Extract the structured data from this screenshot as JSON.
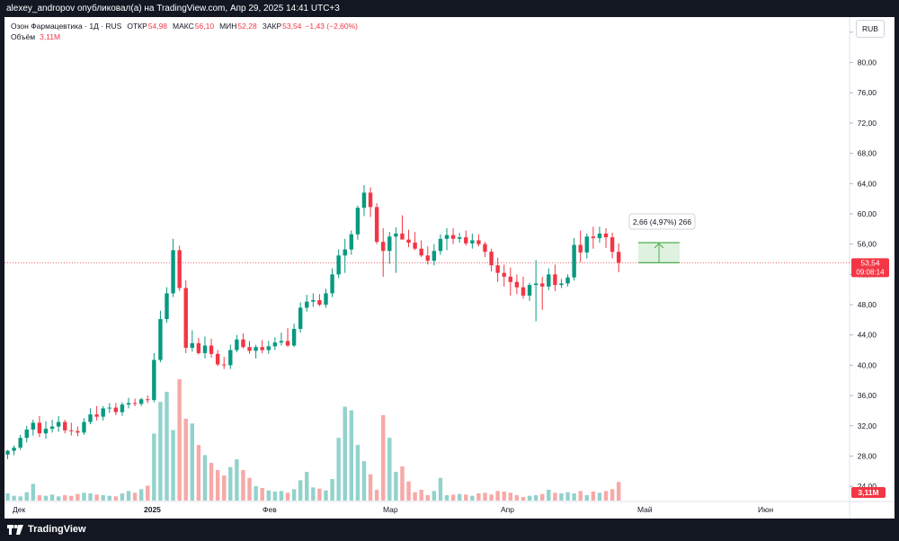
{
  "header": {
    "publish_text": "alexey_andropov опубликовал(а) на TradingView.com, Апр 29, 2025 14:41 UTC+3"
  },
  "legend": {
    "symbol": "Озон Фармацевтика · 1Д · RUS",
    "open_label": "ОТКР",
    "open_value": "54,98",
    "high_label": "МАКС",
    "high_value": "56,10",
    "low_label": "МИН",
    "low_value": "52,28",
    "close_label": "ЗАКР",
    "close_value": "53,54",
    "change": "−1,43 (−2,60%)",
    "volume_label": "Объём",
    "volume_value": "3,11M"
  },
  "currency_button": "RUB",
  "footer": {
    "logo_text": "TradingView"
  },
  "colors": {
    "up": "#089981",
    "down": "#f23645",
    "up_volume": "#92d2cc",
    "down_volume": "#f7a9a7",
    "measure": "#4caf50"
  },
  "chart_data": {
    "type": "candlestick",
    "ylim": [
      22,
      86
    ],
    "y_ticks": [
      "24,00",
      "28,00",
      "32,00",
      "36,00",
      "40,00",
      "44,00",
      "48,00",
      "52,00",
      "56,00",
      "60,00",
      "64,00",
      "68,00",
      "72,00",
      "76,00",
      "80,00",
      "84,00"
    ],
    "x_ticks": [
      "Дек",
      "2025",
      "Фев",
      "Мар",
      "Апр",
      "Май",
      "Июн"
    ],
    "last_price_label": "53,54",
    "countdown_label": "09:08:14",
    "volume_label": "3,11M",
    "measure_label": "2,66 (4,97%) 266",
    "measure_range": [
      53.54,
      56.2
    ],
    "series": {
      "open": [
        28.2,
        28.7,
        29.1,
        30.4,
        31.5,
        32.4,
        31.0,
        31.6,
        31.9,
        32.5,
        31.4,
        31.3,
        31.1,
        32.5,
        33.5,
        33.2,
        34.3,
        34.4,
        33.8,
        34.8,
        35.0,
        34.9,
        35.5,
        35.4,
        40.7,
        46.1,
        49.5,
        55.2,
        50.2,
        42.3,
        42.9,
        41.6,
        42.6,
        41.5,
        40.1,
        40.0,
        42.0,
        43.4,
        42.4,
        41.9,
        42.4,
        42.0,
        42.5,
        43.0,
        43.2,
        42.6,
        44.8,
        47.6,
        48.4,
        48.6,
        48.0,
        49.5,
        52.0,
        54.5,
        55.3,
        57.3,
        60.8,
        62.8,
        60.9,
        56.3,
        55.1,
        57.0,
        57.4,
        56.6,
        56.2,
        55.4,
        54.5,
        53.8,
        55.1,
        56.7,
        57.2,
        56.7,
        56.9,
        56.1,
        56.5,
        56.0,
        55.0,
        53.2,
        52.2,
        51.7,
        51.0,
        50.3,
        49.2,
        50.6,
        50.8,
        50.4,
        52.0,
        50.6,
        50.8,
        51.6,
        55.9,
        54.9,
        57.0,
        56.8,
        57.4,
        56.9,
        54.98
      ],
      "high": [
        28.8,
        29.4,
        30.8,
        32.0,
        32.8,
        33.3,
        32.6,
        32.8,
        33.3,
        32.8,
        32.4,
        31.9,
        33.0,
        34.3,
        34.6,
        34.6,
        35.0,
        35.0,
        35.1,
        35.7,
        35.6,
        35.7,
        36.0,
        41.6,
        47.2,
        50.3,
        56.7,
        55.8,
        51.2,
        44.6,
        43.6,
        43.8,
        43.5,
        42.0,
        41.1,
        42.7,
        44.0,
        44.2,
        43.2,
        42.7,
        43.3,
        43.2,
        43.7,
        44.3,
        44.9,
        45.5,
        48.3,
        49.3,
        49.5,
        49.4,
        50.1,
        52.8,
        55.3,
        56.7,
        57.8,
        61.1,
        63.8,
        63.5,
        61.4,
        58.1,
        57.6,
        58.2,
        59.8,
        57.9,
        57.6,
        56.5,
        55.7,
        56.0,
        57.3,
        58.1,
        58.1,
        57.5,
        57.8,
        57.4,
        57.3,
        56.3,
        55.4,
        54.2,
        53.3,
        52.9,
        52.0,
        51.7,
        50.9,
        53.9,
        51.7,
        52.8,
        53.3,
        51.4,
        52.0,
        56.8,
        57.8,
        57.4,
        58.3,
        58.3,
        58.1,
        57.5,
        56.1
      ],
      "low": [
        27.6,
        28.1,
        28.8,
        29.8,
        30.7,
        30.5,
        30.3,
        31.1,
        31.2,
        31.0,
        30.7,
        30.6,
        30.8,
        32.2,
        32.7,
        32.7,
        33.7,
        33.4,
        33.3,
        34.3,
        34.6,
        34.6,
        35.0,
        35.1,
        40.4,
        45.6,
        49.0,
        49.8,
        41.6,
        41.8,
        41.4,
        40.9,
        41.0,
        39.9,
        39.5,
        39.5,
        41.7,
        42.2,
        41.5,
        40.9,
        41.6,
        41.5,
        42.0,
        42.6,
        42.4,
        42.4,
        44.3,
        47.1,
        47.7,
        47.8,
        47.6,
        49.0,
        51.5,
        52.2,
        54.6,
        56.6,
        59.7,
        59.6,
        56.0,
        51.7,
        53.4,
        52.2,
        57.0,
        55.6,
        55.2,
        54.3,
        53.3,
        53.2,
        54.6,
        55.2,
        56.0,
        56.2,
        55.8,
        55.4,
        55.7,
        54.3,
        52.4,
        51.0,
        50.4,
        49.2,
        49.4,
        48.8,
        48.5,
        45.8,
        47.3,
        49.9,
        49.8,
        50.2,
        50.4,
        51.2,
        53.6,
        54.1,
        55.4,
        56.2,
        55.5,
        54.1,
        52.28
      ],
      "close": [
        28.7,
        29.1,
        30.4,
        31.5,
        32.4,
        31.0,
        31.6,
        31.9,
        32.5,
        31.4,
        31.3,
        31.1,
        32.5,
        33.5,
        33.2,
        34.3,
        34.4,
        33.8,
        34.8,
        35.0,
        34.9,
        35.5,
        35.4,
        40.7,
        46.1,
        49.5,
        55.2,
        50.2,
        42.3,
        42.9,
        41.6,
        42.6,
        41.5,
        40.1,
        40.0,
        42.0,
        43.4,
        42.4,
        41.9,
        42.4,
        42.0,
        42.5,
        43.0,
        43.2,
        42.6,
        44.8,
        47.6,
        48.4,
        48.6,
        48.0,
        49.5,
        52.0,
        54.5,
        55.3,
        57.3,
        60.8,
        62.8,
        60.9,
        56.3,
        55.1,
        57.0,
        57.4,
        56.6,
        56.2,
        55.4,
        54.5,
        53.8,
        55.1,
        56.7,
        57.2,
        56.7,
        56.9,
        56.1,
        56.5,
        56.0,
        55.0,
        53.2,
        52.2,
        51.7,
        51.0,
        50.3,
        49.2,
        50.6,
        50.8,
        50.4,
        52.0,
        50.6,
        50.8,
        51.6,
        55.9,
        54.9,
        57.0,
        56.8,
        57.4,
        56.9,
        54.98,
        53.54
      ],
      "volume": [
        1.2,
        0.8,
        0.7,
        1.4,
        2.8,
        0.9,
        0.8,
        1.0,
        0.7,
        0.9,
        0.8,
        1.1,
        1.3,
        1.2,
        1.0,
        0.9,
        0.8,
        0.7,
        1.2,
        1.6,
        1.3,
        1.9,
        2.5,
        11.2,
        16.5,
        18.2,
        11.8,
        20.3,
        13.7,
        12.9,
        9.3,
        7.6,
        6.3,
        5.1,
        4.2,
        5.6,
        6.9,
        5.1,
        3.8,
        2.4,
        2.1,
        1.7,
        1.5,
        1.6,
        1.3,
        1.9,
        3.4,
        4.8,
        2.2,
        2.0,
        1.7,
        3.6,
        10.5,
        15.7,
        15.1,
        9.3,
        6.6,
        4.4,
        1.8,
        14.3,
        10.5,
        4.8,
        5.7,
        3.2,
        1.4,
        1.8,
        0.9,
        1.6,
        3.8,
        0.9,
        1.0,
        1.1,
        1.0,
        0.8,
        1.2,
        1.3,
        1.0,
        1.6,
        1.5,
        1.3,
        0.9,
        0.6,
        0.8,
        0.9,
        1.1,
        1.8,
        1.3,
        1.2,
        1.4,
        1.2,
        1.6,
        0.9,
        1.5,
        1.3,
        1.6,
        1.9,
        3.11
      ]
    }
  }
}
